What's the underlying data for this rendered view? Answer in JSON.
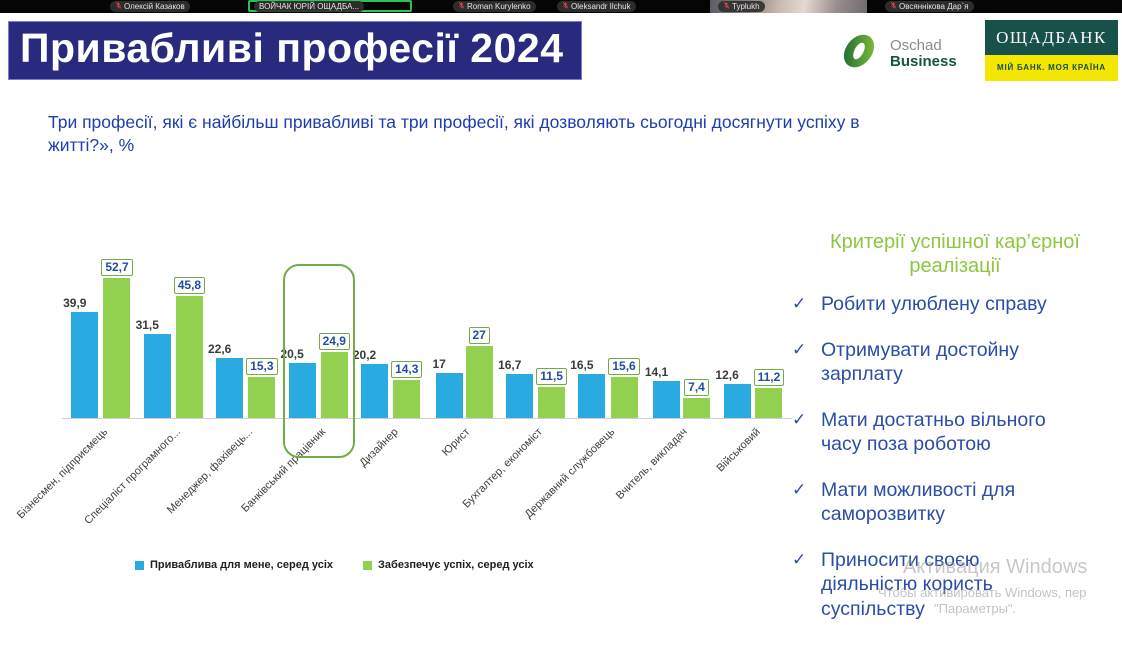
{
  "call_bar": {
    "participants": [
      {
        "name": "Олексій Казаков",
        "muted": true,
        "video": false,
        "active": false
      },
      {
        "name": "ВОЙЧАК ЮРІЙ ОЩАДБА...",
        "muted": false,
        "video": false,
        "active": true
      },
      {
        "name": "Roman Kurylenko",
        "muted": true,
        "video": false,
        "active": false
      },
      {
        "name": "Oleksandr Ilchuk",
        "muted": true,
        "video": false,
        "active": false
      },
      {
        "name": "Typlukh",
        "muted": true,
        "video": true,
        "active": false
      },
      {
        "name": "Овсяннікова Дар`я",
        "muted": true,
        "video": false,
        "active": false
      }
    ]
  },
  "slide": {
    "title": "Привабливі професії 2024",
    "subtitle": "Три професії, які є найбільш привабливі та три професії, які дозволяють сьогодні досягнути успіху в житті?», %",
    "logos": {
      "oschad_business": {
        "line1": "Oschad",
        "line2": "Business"
      },
      "oschadbank": {
        "name": "ОЩАДБАНК",
        "tagline": "МІЙ БАНК. МОЯ КРАЇНА"
      }
    },
    "criteria": {
      "title": "Критерії успішної кар’єрної реалізації",
      "items": [
        "Робити улюблену справу",
        "Отримувати достойну зарплату",
        "Мати достатньо вільного часу поза роботою",
        "Мати можливості для саморозвитку",
        "Приносити своєю діяльністю користь суспільству"
      ]
    }
  },
  "chart_data": {
    "type": "bar",
    "title": "",
    "categories": [
      "Бізнесмен, підприємець",
      "Спеціаліст програмного...",
      "Менеджер, фахівець...",
      "Банківський працівник",
      "Дизайнер",
      "Юрист",
      "Бухгалтер, економіст",
      "Державний службовець",
      "Вчитель, викладач",
      "Військовий"
    ],
    "series": [
      {
        "name": "Приваблива для мене, серед усіх",
        "color": "#29abe2",
        "values": [
          39.9,
          31.5,
          22.6,
          20.5,
          20.2,
          17,
          16.7,
          16.5,
          14.1,
          12.6
        ]
      },
      {
        "name": "Забезпечує успіх, серед усіх",
        "color": "#92d050",
        "values": [
          52.7,
          45.8,
          15.3,
          24.9,
          14.3,
          27,
          11.5,
          15.6,
          7.4,
          11.2
        ]
      }
    ],
    "highlighted_category": "Банківський працівник",
    "ylim": [
      0,
      56
    ],
    "grid": false,
    "legend_position": "bottom"
  },
  "watermark": {
    "line1": "Активация Windows",
    "line2": "Чтобы активировать Windows, пер",
    "line3": "\"Параметры\"."
  },
  "colors": {
    "title_bg": "#29297e",
    "subtitle_text": "#1d3eae",
    "bar_blue": "#29abe2",
    "bar_green": "#92d050",
    "highlight_border": "#6fae44",
    "criteria_title": "#8dc63f",
    "criteria_text": "#2b4da6",
    "bank_dark": "#175149",
    "bank_yellow": "#f3e600"
  }
}
